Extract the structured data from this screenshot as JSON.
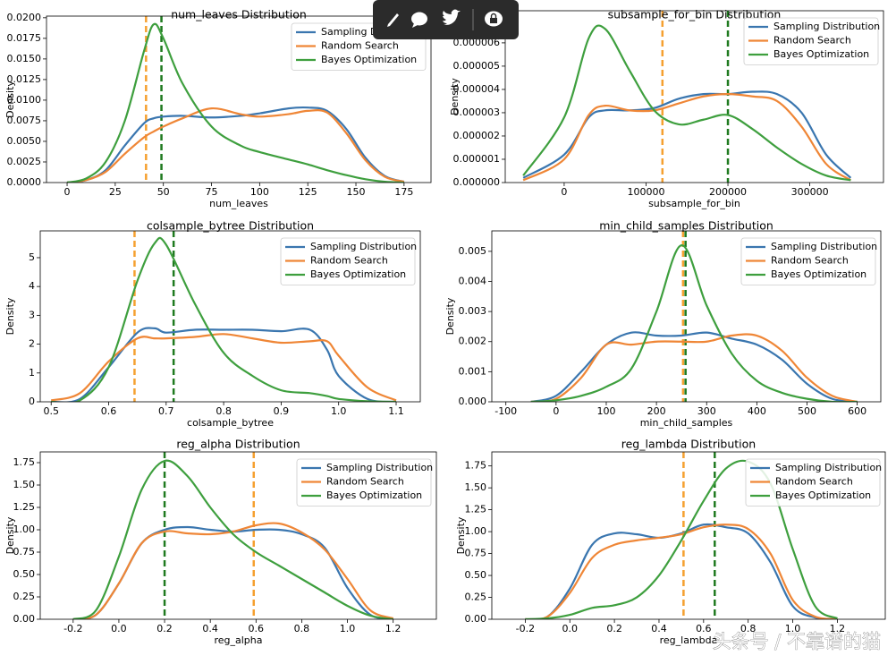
{
  "chart_data": [
    {
      "type": "line",
      "title": "num_leaves Distribution",
      "xlabel": "num_leaves",
      "ylabel": "Density",
      "legend": "upper right",
      "x": [
        0,
        10,
        20,
        30,
        40,
        45,
        50,
        60,
        75,
        90,
        100,
        115,
        125,
        135,
        145,
        155,
        165,
        175
      ],
      "series": [
        {
          "name": "Sampling Distribution",
          "color": "#3a76af",
          "values": [
            0,
            0.0003,
            0.0015,
            0.0045,
            0.0072,
            0.0078,
            0.008,
            0.0081,
            0.0079,
            0.0081,
            0.0084,
            0.009,
            0.0091,
            0.0087,
            0.0065,
            0.003,
            0.0008,
            0.0001
          ]
        },
        {
          "name": "Random Search",
          "color": "#ef8636",
          "values": [
            0,
            0.0003,
            0.0013,
            0.0035,
            0.0055,
            0.0062,
            0.0068,
            0.0078,
            0.009,
            0.0083,
            0.008,
            0.0083,
            0.0087,
            0.0085,
            0.006,
            0.0027,
            0.0007,
            0.0001
          ]
        },
        {
          "name": "Bayes Optimization",
          "color": "#3e9f3e",
          "values": [
            0,
            0.0005,
            0.0025,
            0.0075,
            0.016,
            0.0192,
            0.0175,
            0.012,
            0.0068,
            0.0045,
            0.0037,
            0.0028,
            0.0022,
            0.0015,
            0.0009,
            0.0004,
            0.0001,
            0
          ]
        }
      ],
      "vlines": [
        {
          "x": 41,
          "color": "#f5a030"
        },
        {
          "x": 49,
          "color": "#1f7a1f"
        }
      ],
      "xlim": [
        -10.7,
        189
      ],
      "ylim": [
        0,
        0.0202
      ],
      "xticks": [
        0,
        25,
        50,
        75,
        100,
        125,
        150,
        175
      ],
      "yticks": [
        {
          "value": 0,
          "label": "0.0000"
        },
        0.0025,
        {
          "value": 0.005,
          "label": "0.0050"
        },
        0.0075,
        {
          "value": 0.01,
          "label": "0.0100"
        },
        0.0125,
        {
          "value": 0.015,
          "label": "0.0150"
        },
        0.0175,
        {
          "value": 0.02,
          "label": "0.0200"
        }
      ]
    },
    {
      "type": "line",
      "title": "subsample_for_bin Distribution",
      "xlabel": "subsample_for_bin",
      "ylabel": "Density",
      "legend": "upper right",
      "x": [
        -50000,
        0,
        30000,
        50000,
        80000,
        110000,
        140000,
        170000,
        200000,
        230000,
        260000,
        290000,
        320000,
        350000
      ],
      "series": [
        {
          "name": "Sampling Distribution",
          "color": "#3a76af",
          "values": [
            2e-07,
            1.2e-06,
            2.8e-06,
            3.1e-06,
            3.1e-06,
            3.2e-06,
            3.6e-06,
            3.8e-06,
            3.8e-06,
            3.9e-06,
            3.8e-06,
            3e-06,
            1.2e-06,
            2e-07
          ]
        },
        {
          "name": "Random Search",
          "color": "#ef8636",
          "values": [
            1e-07,
            1e-06,
            2.9e-06,
            3.3e-06,
            3.1e-06,
            3.1e-06,
            3.4e-06,
            3.7e-06,
            3.8e-06,
            3.7e-06,
            3.5e-06,
            2.4e-06,
            8e-07,
            1e-07
          ]
        },
        {
          "name": "Bayes Optimization",
          "color": "#3e9f3e",
          "values": [
            3e-07,
            2.8e-06,
            6.2e-06,
            6.6e-06,
            4.8e-06,
            3.1e-06,
            2.5e-06,
            2.7e-06,
            2.9e-06,
            2.3e-06,
            1.5e-06,
            8e-07,
            3e-07,
            1e-07
          ]
        }
      ],
      "vlines": [
        {
          "x": 120000,
          "color": "#f5a030"
        },
        {
          "x": 200000,
          "color": "#1f7a1f"
        }
      ],
      "xlim": [
        -72000,
        390000
      ],
      "ylim": [
        0,
        7.38e-06
      ],
      "xticks": [
        0,
        100000,
        200000,
        300000
      ],
      "yticks": [
        {
          "value": 0,
          "label": "0.000000"
        },
        {
          "value": 1e-06,
          "label": "0.000001"
        },
        {
          "value": 2e-06,
          "label": "0.000002"
        },
        {
          "value": 3e-06,
          "label": "0.000003"
        },
        {
          "value": 4e-06,
          "label": "0.000004"
        },
        {
          "value": 5e-06,
          "label": "0.000005"
        },
        {
          "value": 6e-06,
          "label": "0.000006"
        }
      ]
    },
    {
      "type": "line",
      "title": "colsample_bytree Distribution",
      "xlabel": "colsample_bytree",
      "ylabel": "Density",
      "legend": "upper right",
      "x": [
        0.5,
        0.55,
        0.6,
        0.65,
        0.68,
        0.7,
        0.75,
        0.8,
        0.85,
        0.9,
        0.95,
        0.98,
        1.0,
        1.05,
        1.1
      ],
      "series": [
        {
          "name": "Sampling Distribution",
          "color": "#3a76af",
          "values": [
            0,
            0.1,
            1.2,
            2.4,
            2.55,
            2.4,
            2.5,
            2.5,
            2.5,
            2.45,
            2.5,
            1.8,
            0.9,
            0.1,
            0
          ]
        },
        {
          "name": "Random Search",
          "color": "#ef8636",
          "values": [
            0.05,
            0.3,
            1.4,
            2.2,
            2.2,
            2.2,
            2.25,
            2.35,
            2.2,
            2.05,
            2.1,
            2.1,
            1.6,
            0.5,
            0.05
          ]
        },
        {
          "name": "Bayes Optimization",
          "color": "#3e9f3e",
          "values": [
            0,
            0.05,
            1.2,
            4.2,
            5.5,
            5.45,
            3.4,
            1.7,
            0.9,
            0.4,
            0.3,
            0.2,
            0.1,
            0.02,
            0
          ]
        }
      ],
      "vlines": [
        {
          "x": 0.645,
          "color": "#f5a030"
        },
        {
          "x": 0.713,
          "color": "#1f7a1f"
        }
      ],
      "xlim": [
        0.481,
        1.142
      ],
      "ylim": [
        0,
        5.93
      ],
      "xticks": [
        0.5,
        0.6,
        0.7,
        0.8,
        0.9,
        {
          "value": 1,
          "label": "1.0"
        },
        1.1
      ],
      "yticks": [
        0,
        1,
        2,
        3,
        4,
        5
      ]
    },
    {
      "type": "line",
      "title": "min_child_samples Distribution",
      "xlabel": "min_child_samples",
      "ylabel": "Density",
      "legend": "upper right",
      "x": [
        -50,
        0,
        50,
        100,
        150,
        200,
        250,
        300,
        350,
        400,
        450,
        500,
        550,
        600
      ],
      "series": [
        {
          "name": "Sampling Distribution",
          "color": "#3a76af",
          "values": [
            0,
            0.0002,
            0.001,
            0.0019,
            0.0023,
            0.0022,
            0.0022,
            0.0023,
            0.0021,
            0.0019,
            0.0014,
            0.0006,
            0.0001,
            0
          ]
        },
        {
          "name": "Random Search",
          "color": "#ef8636",
          "values": [
            0,
            0.0001,
            0.0008,
            0.0019,
            0.0019,
            0.002,
            0.002,
            0.002,
            0.0022,
            0.0022,
            0.0017,
            0.0008,
            0.0002,
            0
          ]
        },
        {
          "name": "Bayes Optimization",
          "color": "#3e9f3e",
          "values": [
            0,
            5e-05,
            0.0002,
            0.0005,
            0.0011,
            0.003,
            0.0052,
            0.0032,
            0.0016,
            0.0007,
            0.0003,
            0.0001,
            0,
            0
          ]
        }
      ],
      "vlines": [
        {
          "x": 253,
          "color": "#f5a030"
        },
        {
          "x": 258,
          "color": "#1f7a1f"
        }
      ],
      "xlim": [
        -128,
        647
      ],
      "ylim": [
        0,
        0.00568
      ],
      "xticks": [
        -100,
        0,
        100,
        200,
        300,
        400,
        500,
        600
      ],
      "yticks": [
        {
          "value": 0,
          "label": "0.000"
        },
        0.001,
        0.002,
        0.003,
        0.004,
        0.005
      ]
    },
    {
      "type": "line",
      "title": "reg_alpha Distribution",
      "xlabel": "reg_alpha",
      "ylabel": "Density",
      "legend": "upper right",
      "x": [
        -0.2,
        -0.1,
        0,
        0.1,
        0.2,
        0.3,
        0.4,
        0.5,
        0.6,
        0.7,
        0.8,
        0.9,
        1.0,
        1.1,
        1.2
      ],
      "series": [
        {
          "name": "Sampling Distribution",
          "color": "#3a76af",
          "values": [
            0,
            0.05,
            0.4,
            0.85,
            1.0,
            1.03,
            1.0,
            0.98,
            1.0,
            1.0,
            0.95,
            0.8,
            0.35,
            0.05,
            0
          ]
        },
        {
          "name": "Random Search",
          "color": "#ef8636",
          "values": [
            0,
            0.05,
            0.4,
            0.85,
            0.98,
            0.96,
            0.95,
            0.98,
            1.05,
            1.07,
            0.97,
            0.78,
            0.45,
            0.1,
            0.01
          ]
        },
        {
          "name": "Bayes Optimization",
          "color": "#3e9f3e",
          "values": [
            0,
            0.1,
            0.7,
            1.45,
            1.77,
            1.6,
            1.25,
            0.95,
            0.75,
            0.6,
            0.45,
            0.3,
            0.15,
            0.04,
            0
          ]
        }
      ],
      "vlines": [
        {
          "x": 0.2,
          "color": "#1f7a1f"
        },
        {
          "x": 0.59,
          "color": "#f5a030"
        }
      ],
      "xlim": [
        -0.344,
        1.389
      ],
      "ylim": [
        0,
        1.87
      ],
      "xticks": [
        -0.2,
        {
          "value": 0,
          "label": "0.0"
        },
        0.2,
        0.4,
        0.6,
        0.8,
        {
          "value": 1,
          "label": "1.0"
        },
        1.2
      ],
      "yticks": [
        {
          "value": 0,
          "label": "0.00"
        },
        0.25,
        {
          "value": 0.5,
          "label": "0.50"
        },
        0.75,
        {
          "value": 1,
          "label": "1.00"
        },
        1.25,
        {
          "value": 1.5,
          "label": "1.50"
        },
        1.75
      ]
    },
    {
      "type": "line",
      "title": "reg_lambda Distribution",
      "xlabel": "reg_lambda",
      "ylabel": "Density",
      "legend": "upper right",
      "x": [
        -0.2,
        -0.1,
        0,
        0.1,
        0.2,
        0.3,
        0.4,
        0.5,
        0.6,
        0.7,
        0.8,
        0.9,
        1.0,
        1.1,
        1.2
      ],
      "series": [
        {
          "name": "Sampling Distribution",
          "color": "#3a76af",
          "values": [
            0,
            0.03,
            0.35,
            0.85,
            0.98,
            0.97,
            0.93,
            0.98,
            1.08,
            1.05,
            0.98,
            0.65,
            0.15,
            0.02,
            0
          ]
        },
        {
          "name": "Random Search",
          "color": "#ef8636",
          "values": [
            0,
            0.03,
            0.3,
            0.7,
            0.85,
            0.9,
            0.93,
            0.97,
            1.05,
            1.08,
            1.03,
            0.75,
            0.22,
            0.03,
            0
          ]
        },
        {
          "name": "Bayes Optimization",
          "color": "#3e9f3e",
          "values": [
            0,
            0.01,
            0.05,
            0.13,
            0.16,
            0.25,
            0.5,
            0.9,
            1.35,
            1.72,
            1.8,
            1.55,
            0.8,
            0.15,
            0.01
          ]
        }
      ],
      "vlines": [
        {
          "x": 0.51,
          "color": "#f5a030"
        },
        {
          "x": 0.65,
          "color": "#1f7a1f"
        }
      ],
      "xlim": [
        -0.35,
        1.415
      ],
      "ylim": [
        0,
        1.91
      ],
      "xticks": [
        -0.2,
        {
          "value": 0,
          "label": "0.0"
        },
        0.2,
        0.4,
        0.6,
        0.8,
        {
          "value": 1,
          "label": "1.0"
        },
        1.2
      ],
      "yticks": [
        {
          "value": 0,
          "label": "0.00"
        },
        0.25,
        {
          "value": 0.5,
          "label": "0.50"
        },
        0.75,
        {
          "value": 1,
          "label": "1.00"
        },
        1.25,
        {
          "value": 1.5,
          "label": "1.50"
        },
        1.75
      ]
    }
  ],
  "watermark": "头条号 / 不靠谱的猫"
}
